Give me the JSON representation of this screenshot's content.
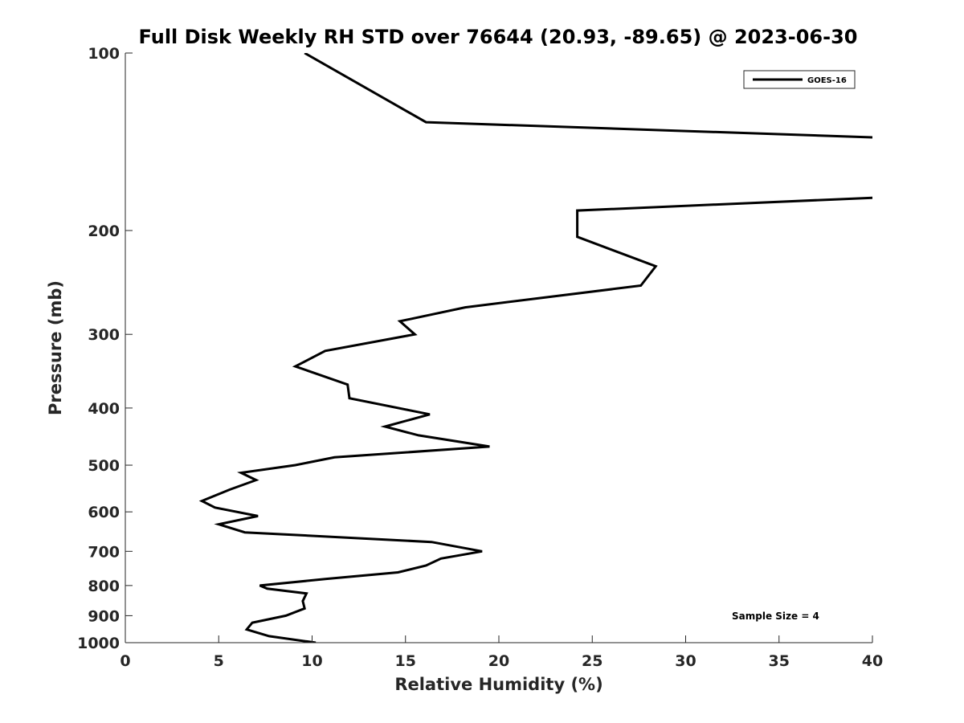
{
  "chart_data": {
    "type": "line",
    "title": "Full Disk Weekly RH STD over 76644 (20.93, -89.65) @ 2023-06-30",
    "xlabel": "Relative Humidity (%)",
    "ylabel": "Pressure (mb)",
    "xlim": [
      0,
      40
    ],
    "ylim": [
      100,
      1000
    ],
    "yscale": "log",
    "y_reversed": true,
    "x_ticks": [
      0,
      5,
      10,
      15,
      20,
      25,
      30,
      35,
      40
    ],
    "y_ticks": [
      100,
      200,
      300,
      400,
      500,
      600,
      700,
      800,
      900,
      1000
    ],
    "grid": false,
    "legend_position": "top-right",
    "annotation": "Sample Size = 4",
    "series": [
      {
        "name": "GOES-16",
        "color": "#000000",
        "points": [
          [
            10.2,
            1000
          ],
          [
            7.7,
            975
          ],
          [
            6.5,
            950
          ],
          [
            6.8,
            925
          ],
          [
            8.6,
            900
          ],
          [
            9.6,
            875
          ],
          [
            9.5,
            850
          ],
          [
            9.7,
            825
          ],
          [
            7.6,
            810
          ],
          [
            7.2,
            800
          ],
          [
            10.7,
            780
          ],
          [
            14.6,
            760
          ],
          [
            16.1,
            740
          ],
          [
            16.9,
            720
          ],
          [
            19.1,
            700
          ],
          [
            16.4,
            675
          ],
          [
            6.4,
            650
          ],
          [
            5.0,
            630
          ],
          [
            7.1,
            610
          ],
          [
            4.8,
            590
          ],
          [
            4.1,
            575
          ],
          [
            5.6,
            550
          ],
          [
            7.0,
            530
          ],
          [
            6.2,
            515
          ],
          [
            9.1,
            500
          ],
          [
            11.2,
            485
          ],
          [
            19.5,
            465
          ],
          [
            15.7,
            445
          ],
          [
            13.9,
            430
          ],
          [
            16.3,
            410
          ],
          [
            12.0,
            385
          ],
          [
            11.9,
            365
          ],
          [
            9.1,
            340
          ],
          [
            10.7,
            320
          ],
          [
            15.5,
            300
          ],
          [
            14.7,
            285
          ],
          [
            18.2,
            270
          ],
          [
            27.6,
            248
          ],
          [
            28.4,
            230
          ],
          [
            24.2,
            205
          ],
          [
            24.2,
            185
          ],
          [
            40.0,
            176
          ],
          [
            45.0,
            172
          ]
        ],
        "upper_points": [
          [
            40.0,
            139
          ],
          [
            16.1,
            131
          ],
          [
            9.6,
            100
          ]
        ]
      }
    ]
  }
}
